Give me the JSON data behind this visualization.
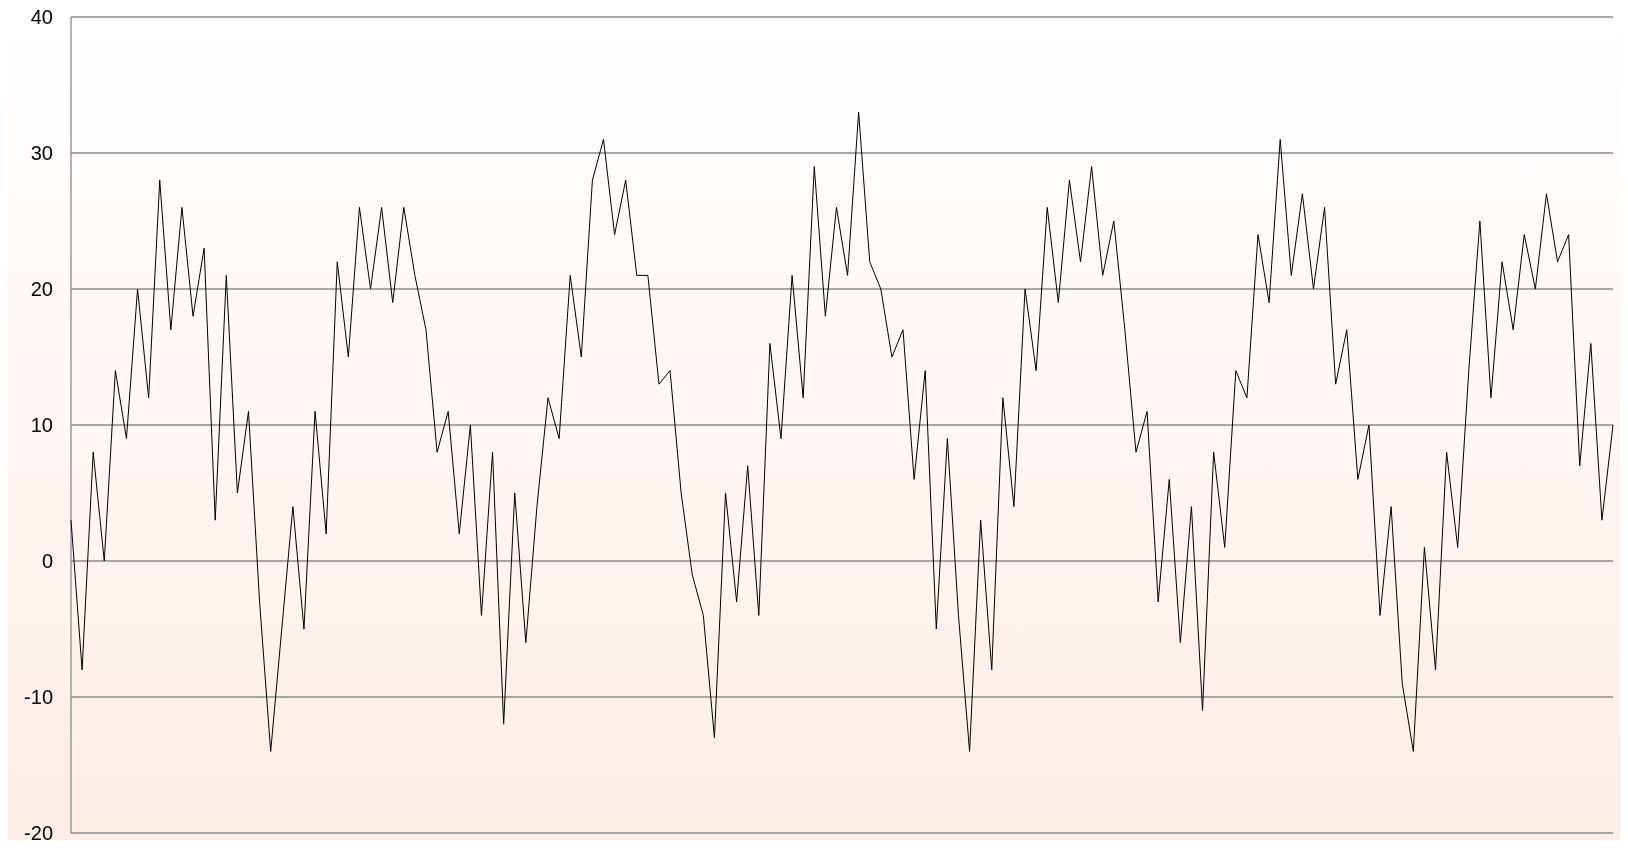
{
  "chart_data": {
    "type": "line",
    "categories": [
      null,
      null,
      null,
      null,
      null,
      null,
      null,
      null,
      null,
      null,
      null,
      null,
      null,
      null,
      null,
      null,
      null,
      null,
      null,
      null,
      null,
      null,
      null,
      null,
      null,
      null,
      null,
      null,
      null,
      null,
      null,
      null,
      null,
      null,
      null,
      null,
      null,
      null,
      null,
      null,
      null,
      null,
      null,
      null,
      null,
      null,
      null,
      null,
      null,
      null,
      null,
      null,
      null,
      null,
      null,
      null,
      null,
      null,
      null,
      null,
      null,
      null,
      null,
      null,
      null,
      null,
      null,
      null,
      null,
      null,
      null,
      null,
      null,
      null,
      null,
      null,
      null,
      null,
      null,
      null,
      null,
      null,
      null,
      null,
      null,
      null,
      null,
      null,
      null,
      null,
      null,
      null,
      null,
      null,
      null,
      null,
      null,
      null,
      null,
      null,
      null,
      null,
      null,
      null,
      null,
      null,
      null,
      null,
      null,
      null,
      null,
      null,
      null,
      null,
      null,
      null,
      null,
      null,
      null,
      null,
      null,
      null,
      null,
      null,
      null,
      null,
      null,
      null,
      null,
      null,
      null,
      null,
      null,
      null,
      null,
      null,
      null,
      null,
      null,
      null
    ],
    "series": [
      {
        "color": "#000000",
        "values": [
          3,
          -8,
          8,
          0,
          14,
          9,
          20,
          12,
          28,
          17,
          26,
          18,
          23,
          3,
          21,
          5,
          11,
          -3,
          -14,
          -5,
          4,
          -5,
          11,
          2,
          22,
          15,
          26,
          20,
          26,
          19,
          26,
          21,
          17,
          8,
          11,
          2,
          10,
          -4,
          8,
          -12,
          5,
          -6,
          4,
          12,
          9,
          21,
          15,
          28,
          31,
          24,
          28,
          21,
          21,
          13,
          14,
          5,
          -1,
          -4,
          -13,
          5,
          -3,
          7,
          -4,
          16,
          9,
          21,
          12,
          29,
          18,
          26,
          21,
          33,
          22,
          20,
          15,
          17,
          6,
          14,
          -5,
          9,
          -4,
          -14,
          3,
          -8,
          12,
          4,
          20,
          14,
          26,
          19,
          28,
          22,
          29,
          21,
          25,
          17,
          8,
          11,
          -3,
          6,
          -6,
          4,
          -11,
          8,
          1,
          14,
          12,
          24,
          19,
          31,
          21,
          27,
          20,
          26,
          13,
          17,
          6,
          10,
          -4,
          4,
          -9,
          -14,
          1,
          -8,
          8,
          1,
          14,
          25,
          12,
          22,
          17,
          24,
          20,
          27,
          22,
          24,
          7,
          16,
          3,
          10
        ]
      }
    ],
    "ylim": [
      -20,
      40
    ],
    "yticks": [
      -20,
      -10,
      0,
      10,
      20,
      30,
      40
    ],
    "grid": "y",
    "tick_labels": "y",
    "line_style": "solid",
    "marker": "none"
  }
}
